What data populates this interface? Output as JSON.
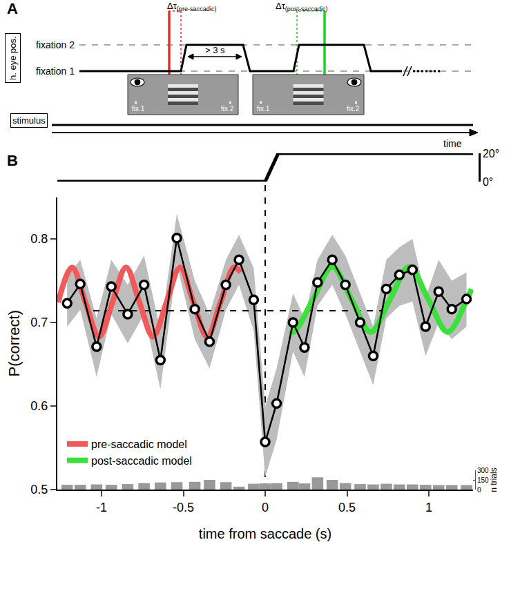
{
  "panel_labels": [
    "A",
    "B"
  ],
  "diagram": {
    "eye_position_label": "h. eye pos.",
    "levels": [
      "fixation 2",
      "fixation 1"
    ],
    "stimulus_label": "stimulus",
    "time_label": "time",
    "interval_label": "> 3 s",
    "pre_window": {
      "symbol": "Δτ",
      "subscript": "(pre-saccadic)",
      "color": "#e8302a"
    },
    "post_window": {
      "symbol": "Δτ",
      "subscript": "(post-saccadic)",
      "color": "#1fcf2a"
    },
    "stimulus_screens": [
      {
        "left": "fix.1",
        "right": "fix.2"
      },
      {
        "left": "fix.1",
        "right": "fix.2"
      }
    ]
  },
  "chart_data": {
    "type": "line",
    "x_label": "time from saccade (s)",
    "y_label": "P(correct)",
    "xlim": [
      -1.27,
      1.27
    ],
    "xticks": [
      -1,
      -0.5,
      0,
      0.5,
      1
    ],
    "ylim": [
      0.5,
      0.85
    ],
    "yticks": [
      0.5,
      0.6,
      0.7,
      0.8
    ],
    "grid": false,
    "legend": "lower left",
    "color": "#000000",
    "marker": "circle",
    "x": [
      -1.21,
      -1.13,
      -1.03,
      -0.94,
      -0.84,
      -0.74,
      -0.64,
      -0.54,
      -0.43,
      -0.34,
      -0.24,
      -0.16,
      -0.07,
      0.0,
      0.07,
      0.17,
      0.24,
      0.32,
      0.41,
      0.49,
      0.58,
      0.66,
      0.74,
      0.82,
      0.9,
      0.98,
      1.06,
      1.14,
      1.23
    ],
    "values": [
      0.723,
      0.746,
      0.671,
      0.743,
      0.71,
      0.745,
      0.655,
      0.801,
      0.716,
      0.677,
      0.745,
      0.775,
      0.727,
      0.557,
      0.603,
      0.7,
      0.67,
      0.748,
      0.775,
      0.745,
      0.7,
      0.66,
      0.74,
      0.757,
      0.763,
      0.695,
      0.737,
      0.716,
      0.728
    ],
    "ci_lower": [
      0.695,
      0.715,
      0.635,
      0.71,
      0.675,
      0.71,
      0.62,
      0.77,
      0.68,
      0.645,
      0.715,
      0.745,
      0.69,
      0.515,
      0.56,
      0.665,
      0.635,
      0.72,
      0.745,
      0.71,
      0.665,
      0.625,
      0.705,
      0.72,
      0.725,
      0.66,
      0.7,
      0.68,
      0.695
    ],
    "ci_upper": [
      0.755,
      0.775,
      0.705,
      0.775,
      0.745,
      0.78,
      0.69,
      0.83,
      0.75,
      0.71,
      0.775,
      0.805,
      0.765,
      0.6,
      0.645,
      0.735,
      0.705,
      0.775,
      0.805,
      0.78,
      0.735,
      0.695,
      0.775,
      0.79,
      0.8,
      0.73,
      0.775,
      0.75,
      0.76
    ],
    "ci_color": "#bdbdbd",
    "models": [
      {
        "name": "pre-saccadic model",
        "color": "#f05a5a",
        "x": [
          -1.265,
          -1.18,
          -1.098,
          -1.015,
          -0.933,
          -0.85,
          -0.768,
          -0.685,
          -0.603,
          -0.52,
          -0.438,
          -0.355,
          -0.273,
          -0.19,
          -0.15
        ],
        "values": [
          0.724,
          0.766,
          0.724,
          0.683,
          0.724,
          0.766,
          0.724,
          0.683,
          0.724,
          0.766,
          0.724,
          0.683,
          0.724,
          0.766,
          0.76
        ]
      },
      {
        "name": "post-saccadic model",
        "color": "#3ce03c",
        "x": [
          0.15,
          0.175,
          0.2925,
          0.41,
          0.5275,
          0.645,
          0.7625,
          0.88,
          0.9975,
          1.115,
          1.2325,
          1.26
        ],
        "values": [
          0.69,
          0.6885,
          0.7275,
          0.7665,
          0.7275,
          0.6885,
          0.7275,
          0.7665,
          0.7275,
          0.6885,
          0.7275,
          0.74
        ]
      }
    ],
    "mean_line": {
      "y": 0.714,
      "x": [
        -1.05,
        0.72
      ],
      "line_style": "dash"
    },
    "saccade_line": {
      "x": 0,
      "line_style": "dash"
    },
    "eye_position": {
      "x": [
        -1.27,
        0,
        0.08,
        1.27
      ],
      "values": [
        0,
        0,
        20,
        20
      ],
      "ylim": [
        0,
        20
      ],
      "yticks": [
        {
          "value": 0,
          "label": "0°"
        },
        {
          "value": 20,
          "label": "20°"
        }
      ]
    },
    "trial_counts": {
      "label": "n trials",
      "color": "#999999",
      "values": [
        75,
        75,
        80,
        75,
        85,
        100,
        110,
        115,
        120,
        150,
        115,
        45,
        90,
        95,
        100,
        120,
        95,
        190,
        150,
        100,
        85,
        80,
        90,
        80,
        80,
        75,
        70,
        70,
        70
      ],
      "ylim": [
        0,
        300
      ],
      "yticks": [
        0,
        150,
        300
      ]
    }
  }
}
